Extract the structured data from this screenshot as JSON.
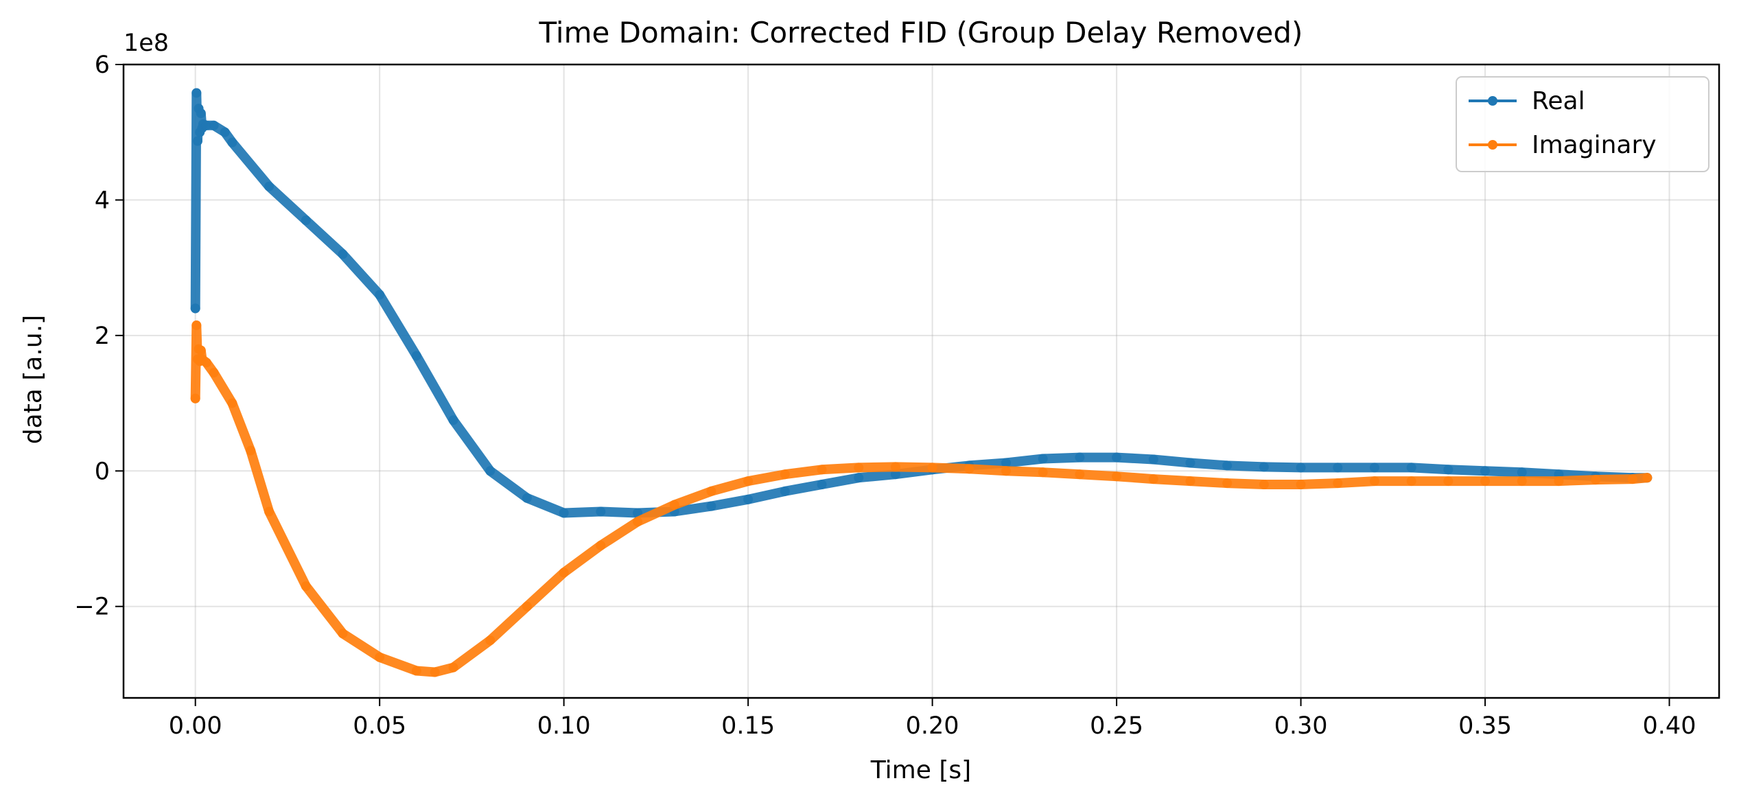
{
  "chart_data": {
    "type": "line",
    "title": "Time Domain: Corrected FID (Group Delay Removed)",
    "xlabel": "Time [s]",
    "ylabel": "data [a.u.]",
    "y_offset_label": "1e8",
    "y_multiplier": 100000000,
    "xlim": [
      -0.0195,
      0.4135
    ],
    "ylim": [
      -3.35,
      6.0
    ],
    "xticks": [
      0.0,
      0.05,
      0.1,
      0.15,
      0.2,
      0.25,
      0.3,
      0.35,
      0.4
    ],
    "xtick_labels": [
      "0.00",
      "0.05",
      "0.10",
      "0.15",
      "0.20",
      "0.25",
      "0.30",
      "0.35",
      "0.40"
    ],
    "yticks": [
      -2,
      0,
      2,
      4,
      6
    ],
    "ytick_labels": [
      "−2",
      "0",
      "2",
      "4",
      "6"
    ],
    "grid": true,
    "legend_position": "top-right",
    "series": [
      {
        "name": "Real",
        "color": "#1f77b4",
        "marker": "circle",
        "x": [
          0.0,
          0.0003,
          0.0006,
          0.0009,
          0.0012,
          0.0015,
          0.0018,
          0.0021,
          0.003,
          0.005,
          0.008,
          0.01,
          0.02,
          0.03,
          0.04,
          0.05,
          0.06,
          0.07,
          0.08,
          0.09,
          0.1,
          0.11,
          0.12,
          0.13,
          0.14,
          0.15,
          0.16,
          0.17,
          0.18,
          0.19,
          0.2,
          0.21,
          0.22,
          0.23,
          0.24,
          0.25,
          0.26,
          0.27,
          0.28,
          0.29,
          0.3,
          0.31,
          0.32,
          0.33,
          0.34,
          0.35,
          0.36,
          0.37,
          0.38,
          0.39,
          0.394
        ],
        "y": [
          2.4,
          5.58,
          4.87,
          5.35,
          5.0,
          5.28,
          5.06,
          5.12,
          5.1,
          5.1,
          5.0,
          4.85,
          4.2,
          3.7,
          3.2,
          2.6,
          1.7,
          0.75,
          0.0,
          -0.4,
          -0.62,
          -0.6,
          -0.62,
          -0.6,
          -0.52,
          -0.42,
          -0.3,
          -0.2,
          -0.1,
          -0.05,
          0.02,
          0.08,
          0.12,
          0.18,
          0.2,
          0.2,
          0.17,
          0.12,
          0.08,
          0.06,
          0.05,
          0.05,
          0.05,
          0.05,
          0.02,
          0.0,
          -0.02,
          -0.05,
          -0.08,
          -0.1,
          -0.1
        ]
      },
      {
        "name": "Imaginary",
        "color": "#ff7f0e",
        "marker": "circle",
        "x": [
          0.0,
          0.0003,
          0.0006,
          0.0009,
          0.0012,
          0.0015,
          0.0018,
          0.003,
          0.005,
          0.01,
          0.015,
          0.02,
          0.03,
          0.04,
          0.05,
          0.06,
          0.065,
          0.07,
          0.08,
          0.09,
          0.1,
          0.11,
          0.12,
          0.13,
          0.14,
          0.15,
          0.16,
          0.17,
          0.18,
          0.19,
          0.2,
          0.21,
          0.22,
          0.23,
          0.24,
          0.25,
          0.26,
          0.27,
          0.28,
          0.29,
          0.3,
          0.31,
          0.32,
          0.33,
          0.34,
          0.35,
          0.36,
          0.37,
          0.38,
          0.39,
          0.394
        ],
        "y": [
          1.07,
          2.15,
          1.65,
          1.8,
          1.62,
          1.78,
          1.65,
          1.6,
          1.45,
          1.0,
          0.3,
          -0.6,
          -1.7,
          -2.4,
          -2.75,
          -2.95,
          -2.97,
          -2.9,
          -2.5,
          -2.0,
          -1.5,
          -1.1,
          -0.75,
          -0.5,
          -0.3,
          -0.15,
          -0.05,
          0.02,
          0.05,
          0.06,
          0.05,
          0.03,
          0.0,
          -0.02,
          -0.05,
          -0.08,
          -0.12,
          -0.15,
          -0.18,
          -0.2,
          -0.2,
          -0.18,
          -0.15,
          -0.15,
          -0.15,
          -0.15,
          -0.15,
          -0.15,
          -0.13,
          -0.12,
          -0.1
        ]
      }
    ]
  }
}
